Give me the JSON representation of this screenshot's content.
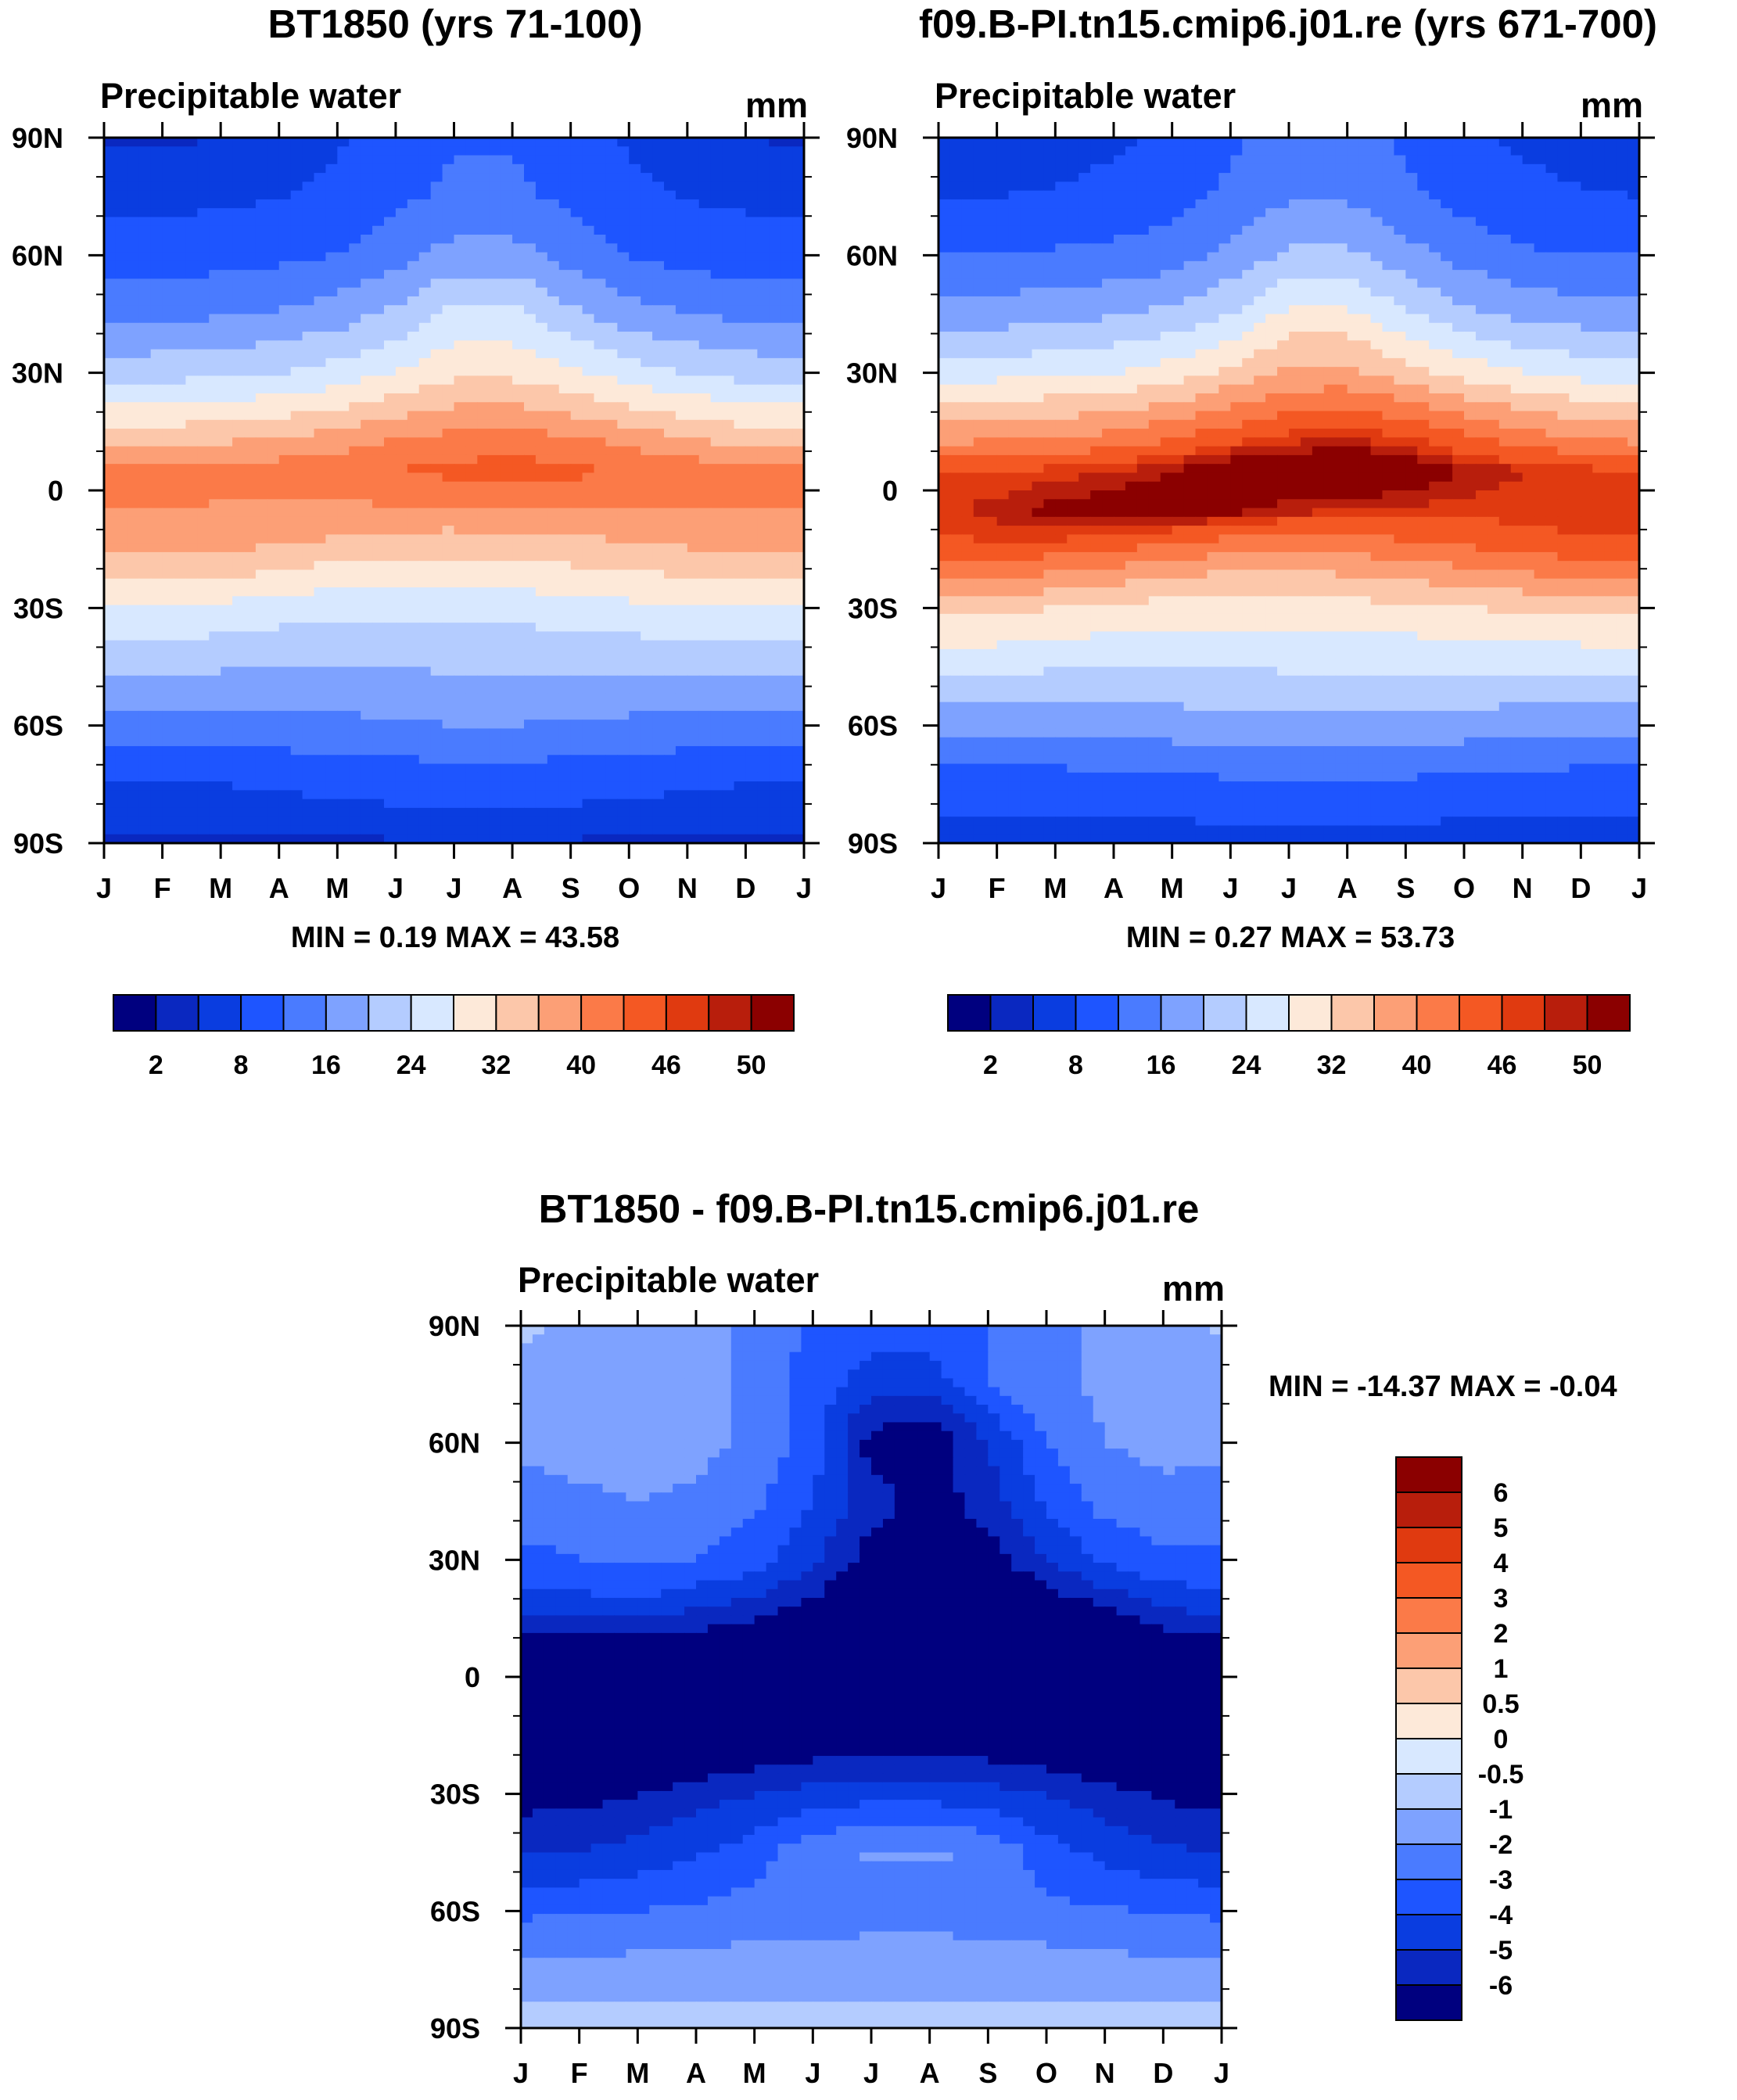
{
  "chart_data": [
    {
      "type": "heatmap",
      "title": "BT1850 (yrs 71-100)",
      "variable": "Precipitable water",
      "units": "mm",
      "x_ticks": [
        "J",
        "F",
        "M",
        "A",
        "M",
        "J",
        "J",
        "A",
        "S",
        "O",
        "N",
        "D",
        "J"
      ],
      "y_ticks": [
        "90N",
        "60N",
        "30N",
        "0",
        "30S",
        "60S",
        "90S"
      ],
      "stats": "MIN =   0.19 MAX =  43.58",
      "colorbar_labels": [
        "2",
        "8",
        "16",
        "24",
        "32",
        "40",
        "46",
        "50"
      ],
      "colorbar_colors": [
        "#00007f",
        "#0a28c0",
        "#0a3de0",
        "#1e55ff",
        "#4a7bff",
        "#7ea2ff",
        "#b4ccff",
        "#d8e8ff",
        "#fde9d9",
        "#fcc7aa",
        "#fc9f76",
        "#fb7a48",
        "#f45823",
        "#e03a10",
        "#b81e0c",
        "#8b0000"
      ],
      "profile": {
        "lat_nodes": [
          -90,
          -75,
          -60,
          -45,
          -30,
          -20,
          -12,
          -5,
          5,
          12,
          20,
          30,
          45,
          60,
          75,
          90
        ],
        "month_nodes": [
          0,
          1,
          2,
          3,
          4,
          5,
          6,
          7,
          8,
          9,
          10,
          11,
          12
        ],
        "values_lat_by_month": [
          [
            1.5,
            1.5,
            1.5,
            1.5,
            1.6,
            1.8,
            1.9,
            1.9,
            1.8,
            1.6,
            1.5,
            1.5,
            1.5
          ],
          [
            4,
            4,
            4,
            4.3,
            4.8,
            5.2,
            5.5,
            5.5,
            5.2,
            4.8,
            4.3,
            4,
            4
          ],
          [
            10,
            10,
            10,
            10.5,
            11,
            11.5,
            12,
            12,
            11.5,
            11,
            10.5,
            10,
            10
          ],
          [
            17,
            17,
            16.5,
            16,
            16,
            16,
            16.5,
            16.5,
            16.5,
            16.5,
            17,
            17,
            17
          ],
          [
            24,
            24,
            23,
            22,
            21,
            21,
            21.5,
            21.5,
            22,
            23,
            23.5,
            24,
            24
          ],
          [
            30,
            30,
            29.5,
            28.5,
            27,
            26.5,
            26.5,
            27,
            27.5,
            28.5,
            29,
            30,
            30
          ],
          [
            34,
            34.5,
            34,
            33,
            32,
            31,
            30.5,
            31,
            31.5,
            32.5,
            33.5,
            34,
            34
          ],
          [
            36,
            36,
            35.5,
            35,
            35,
            35.5,
            36,
            36,
            36,
            36,
            36,
            36,
            36
          ],
          [
            37,
            37.5,
            38,
            38,
            39,
            40,
            41,
            41.5,
            41,
            39.5,
            38.5,
            37.5,
            37
          ],
          [
            31,
            31.5,
            32,
            33,
            34.5,
            37,
            38,
            38.5,
            37.5,
            35.5,
            33,
            31.5,
            31
          ],
          [
            25,
            25.5,
            26,
            27,
            28.5,
            31,
            33,
            33,
            31.5,
            29,
            27,
            25.5,
            25
          ],
          [
            18,
            18.5,
            19,
            20,
            21.5,
            24,
            27,
            27,
            24.5,
            22,
            20,
            18.5,
            18
          ],
          [
            11,
            11,
            11.5,
            12.5,
            14,
            17,
            21,
            21,
            17,
            13.5,
            12,
            11,
            11
          ],
          [
            6,
            6,
            6.5,
            7,
            8,
            10.5,
            13.5,
            13.5,
            10.5,
            8,
            6.5,
            6,
            6
          ],
          [
            3,
            3,
            3.2,
            3.8,
            5,
            7,
            9,
            9,
            7,
            5,
            3.8,
            3.2,
            3
          ],
          [
            1.8,
            1.8,
            2,
            2.5,
            3.5,
            5.5,
            7.5,
            7.5,
            5.5,
            3.5,
            2.5,
            2,
            1.8
          ]
        ]
      }
    },
    {
      "type": "heatmap",
      "title": "f09.B-PI.tn15.cmip6.j01.re (yrs 671-700)",
      "variable": "Precipitable water",
      "units": "mm",
      "x_ticks": [
        "J",
        "F",
        "M",
        "A",
        "M",
        "J",
        "J",
        "A",
        "S",
        "O",
        "N",
        "D",
        "J"
      ],
      "y_ticks": [
        "90N",
        "60N",
        "30N",
        "0",
        "30S",
        "60S",
        "90S"
      ],
      "stats": "MIN =   0.27 MAX =  53.73",
      "colorbar_labels": [
        "2",
        "8",
        "16",
        "24",
        "32",
        "40",
        "46",
        "50"
      ],
      "colorbar_colors": [
        "#00007f",
        "#0a28c0",
        "#0a3de0",
        "#1e55ff",
        "#4a7bff",
        "#7ea2ff",
        "#b4ccff",
        "#d8e8ff",
        "#fde9d9",
        "#fcc7aa",
        "#fc9f76",
        "#fb7a48",
        "#f45823",
        "#e03a10",
        "#b81e0c",
        "#8b0000"
      ],
      "profile": {
        "lat_nodes": [
          -90,
          -75,
          -60,
          -45,
          -30,
          -20,
          -12,
          -5,
          5,
          12,
          20,
          30,
          45,
          60,
          75,
          90
        ],
        "month_nodes": [
          0,
          1,
          2,
          3,
          4,
          5,
          6,
          7,
          8,
          9,
          10,
          11,
          12
        ],
        "values_lat_by_month": [
          [
            2,
            2,
            2,
            2,
            2.1,
            2.3,
            2.5,
            2.5,
            2.3,
            2.1,
            2,
            2,
            2
          ],
          [
            6,
            6,
            6,
            6.3,
            6.8,
            7.2,
            7.5,
            7.5,
            7.2,
            6.8,
            6.3,
            6,
            6
          ],
          [
            13,
            13,
            13,
            13.5,
            14,
            14.5,
            15,
            15,
            14.5,
            14,
            13.5,
            13,
            13
          ],
          [
            21,
            21,
            20.5,
            20,
            20,
            20,
            20.5,
            20.5,
            20.5,
            20.5,
            21,
            21,
            21
          ],
          [
            29,
            29,
            28,
            27,
            26,
            26,
            26.5,
            26.5,
            27,
            28,
            28.5,
            29,
            29
          ],
          [
            38,
            38,
            37,
            35.5,
            33.5,
            32.5,
            32.5,
            33,
            34,
            35.5,
            37,
            38,
            38
          ],
          [
            44,
            44.5,
            44.5,
            43.5,
            41.5,
            40,
            39,
            39.5,
            40.5,
            42,
            43,
            44,
            44
          ],
          [
            45,
            47,
            49,
            50,
            51,
            49,
            47,
            46,
            45.5,
            45,
            45,
            45,
            45
          ],
          [
            44,
            44,
            45,
            46,
            48,
            51,
            52,
            52.5,
            51,
            48,
            46,
            45,
            44
          ],
          [
            36,
            36.5,
            37,
            38.5,
            41,
            44,
            46,
            47,
            45.5,
            42,
            39,
            37,
            36
          ],
          [
            30,
            30.5,
            31,
            32,
            34,
            37,
            40,
            40.5,
            38.5,
            35.5,
            32.5,
            30.5,
            30
          ],
          [
            22,
            22.5,
            23,
            24,
            26,
            29,
            33,
            33,
            29.5,
            26.5,
            24,
            22.5,
            22
          ],
          [
            14,
            14,
            14.5,
            15.5,
            17,
            20,
            25,
            25,
            20.5,
            17,
            15,
            14,
            14
          ],
          [
            8,
            8,
            8.5,
            9,
            10,
            13,
            17,
            17,
            13.5,
            10.5,
            8.5,
            8,
            8
          ],
          [
            4,
            4,
            4.2,
            5,
            6.5,
            9,
            11.5,
            11.5,
            9,
            6.5,
            5,
            4.2,
            4
          ],
          [
            2.5,
            2.5,
            2.8,
            3.5,
            4.5,
            7,
            10,
            10,
            7,
            4.5,
            3.5,
            2.8,
            2.5
          ]
        ]
      }
    },
    {
      "type": "heatmap",
      "title": "BT1850 - f09.B-PI.tn15.cmip6.j01.re",
      "variable": "Precipitable water",
      "units": "mm",
      "x_ticks": [
        "J",
        "F",
        "M",
        "A",
        "M",
        "J",
        "J",
        "A",
        "S",
        "O",
        "N",
        "D",
        "J"
      ],
      "y_ticks": [
        "90N",
        "60N",
        "30N",
        "0",
        "30S",
        "60S",
        "90S"
      ],
      "stats": "MIN = -14.37 MAX =  -0.04",
      "colorbar_labels": [
        "6",
        "5",
        "4",
        "3",
        "2",
        "1",
        "0.5",
        "0",
        "-0.5",
        "-1",
        "-2",
        "-3",
        "-4",
        "-5",
        "-6"
      ],
      "colorbar_colors": [
        "#8b0000",
        "#b81e0c",
        "#e03a10",
        "#f45823",
        "#fb7a48",
        "#fc9f76",
        "#fcc7aa",
        "#fde9d9",
        "#d8e8ff",
        "#b4ccff",
        "#7ea2ff",
        "#4a7bff",
        "#1e55ff",
        "#0a3de0",
        "#0a28c0",
        "#00007f"
      ],
      "profile": {
        "lat_nodes": [
          -90,
          -75,
          -60,
          -45,
          -30,
          -20,
          -12,
          -5,
          5,
          12,
          20,
          30,
          45,
          60,
          75,
          90
        ],
        "month_nodes": [
          0,
          1,
          2,
          3,
          4,
          5,
          6,
          7,
          8,
          9,
          10,
          11,
          12
        ],
        "values_lat_by_month": [
          [
            -0.5,
            -0.5,
            -0.5,
            -0.5,
            -0.6,
            -0.6,
            -0.7,
            -0.7,
            -0.6,
            -0.6,
            -0.5,
            -0.5,
            -0.5
          ],
          [
            -1.7,
            -1.7,
            -1.6,
            -1.5,
            -1.5,
            -1.5,
            -1.4,
            -1.4,
            -1.4,
            -1.5,
            -1.6,
            -1.7,
            -1.7
          ],
          [
            -3.2,
            -3.1,
            -3,
            -2.8,
            -2.6,
            -2.5,
            -2.4,
            -2.4,
            -2.5,
            -2.7,
            -2.9,
            -3.1,
            -3.2
          ],
          [
            -5,
            -5,
            -4.6,
            -4.1,
            -3.5,
            -2.2,
            -1.9,
            -1.9,
            -2.1,
            -3.6,
            -4.3,
            -4.8,
            -5
          ],
          [
            -6.5,
            -6.4,
            -6,
            -5.5,
            -5,
            -4.6,
            -4.4,
            -4.4,
            -4.6,
            -5,
            -5.6,
            -6.2,
            -6.5
          ],
          [
            -7.5,
            -7.5,
            -7.3,
            -7,
            -6.5,
            -6.2,
            -6,
            -6,
            -6.2,
            -6.5,
            -7,
            -7.3,
            -7.5
          ],
          [
            -8.5,
            -8.5,
            -8.5,
            -8,
            -7.5,
            -7,
            -6.8,
            -6.8,
            -7,
            -7.5,
            -8,
            -8.4,
            -8.5
          ],
          [
            -9,
            -9,
            -9.5,
            -10,
            -11,
            -10,
            -9,
            -8.5,
            -8.5,
            -8.5,
            -8.5,
            -8.8,
            -9
          ],
          [
            -8,
            -8,
            -8.5,
            -8.5,
            -9,
            -10,
            -11,
            -12,
            -11,
            -10,
            -9,
            -8.5,
            -8
          ],
          [
            -5.5,
            -5.5,
            -5.5,
            -6,
            -6.5,
            -7.5,
            -9,
            -10,
            -9.5,
            -8.5,
            -7.5,
            -6,
            -5.5
          ],
          [
            -4.2,
            -4.2,
            -4,
            -4.5,
            -5,
            -6,
            -7.5,
            -8,
            -7.5,
            -6.5,
            -5.5,
            -4.6,
            -4.2
          ],
          [
            -3.3,
            -3,
            -2.8,
            -3,
            -3.5,
            -4.8,
            -6.5,
            -7,
            -6.5,
            -5,
            -3.8,
            -3.2,
            -3.3
          ],
          [
            -2.4,
            -2.2,
            -2,
            -2.2,
            -2.8,
            -4,
            -5.5,
            -6.5,
            -5.5,
            -3.8,
            -2.6,
            -2.3,
            -2.4
          ],
          [
            -1.8,
            -1.6,
            -1.5,
            -1.7,
            -2.2,
            -3.5,
            -6.5,
            -7,
            -5,
            -3,
            -2,
            -1.7,
            -1.8
          ],
          [
            -1.5,
            -1.5,
            -1.6,
            -1.8,
            -2.2,
            -3.5,
            -4.5,
            -4.5,
            -3,
            -2.2,
            -1.8,
            -1.6,
            -1.5
          ],
          [
            -0.8,
            -1.2,
            -1.5,
            -1.8,
            -2.2,
            -3.2,
            -3.5,
            -3.5,
            -3,
            -2.3,
            -1.8,
            -1.5,
            -0.8
          ]
        ]
      }
    }
  ]
}
